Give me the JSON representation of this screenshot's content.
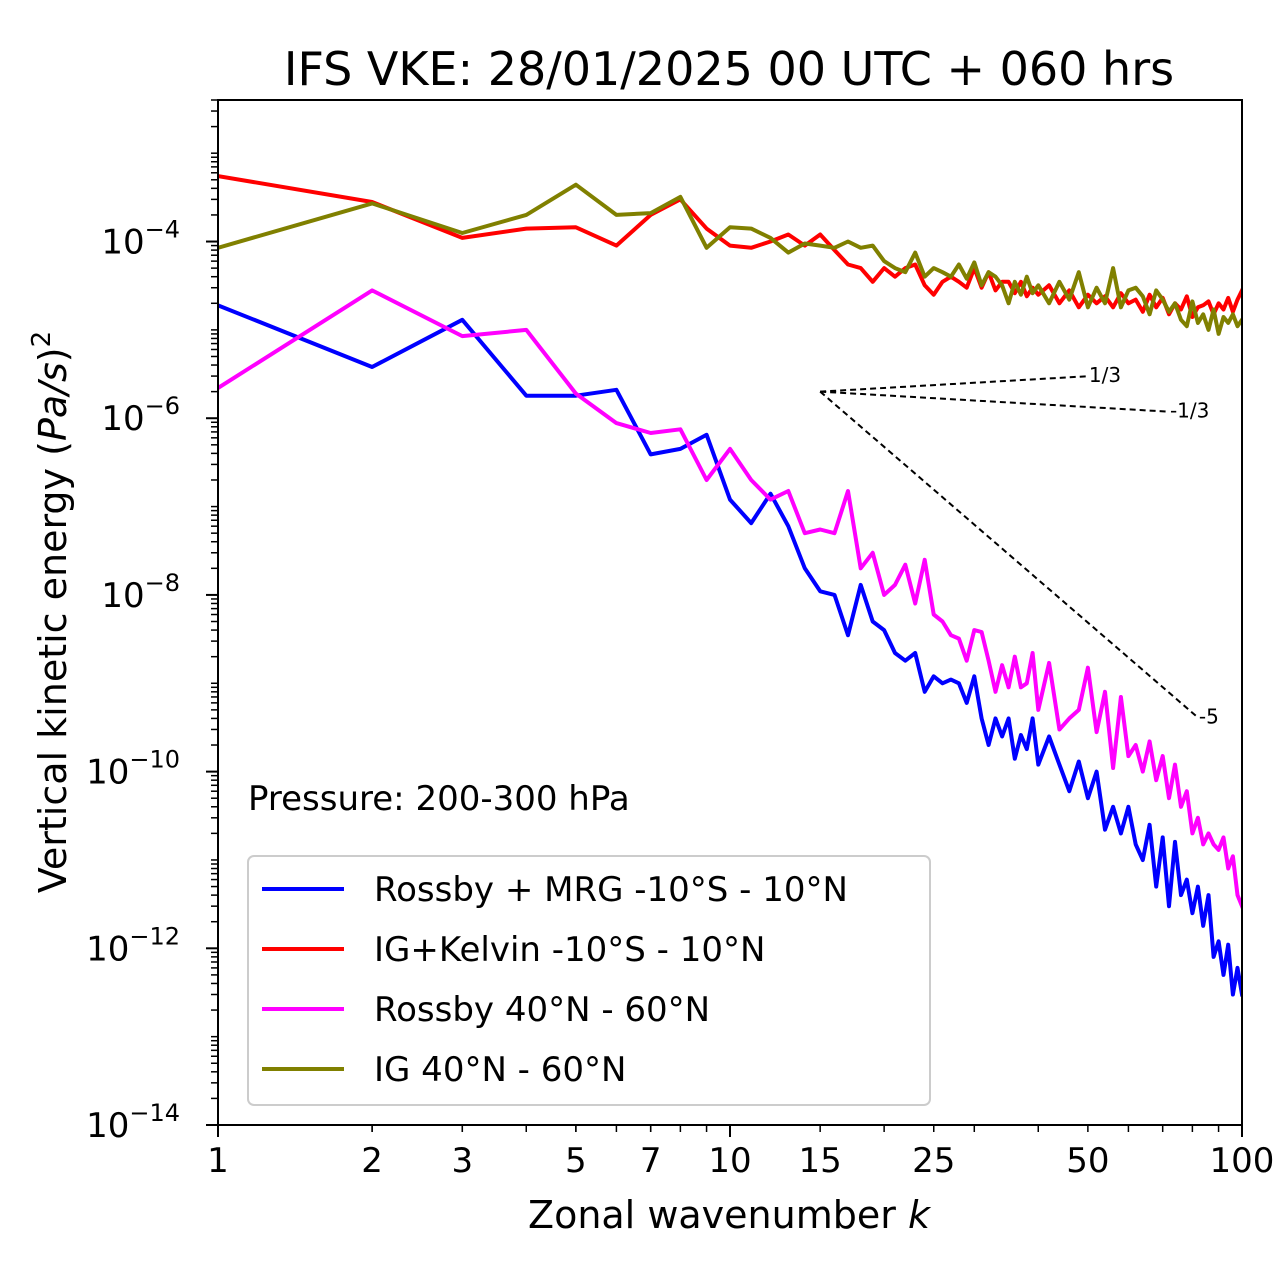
{
  "chart_data": {
    "type": "line",
    "title": "IFS VKE: 28/01/2025 00 UTC + 060 hrs",
    "xlabel": "Zonal wavenumber k",
    "ylabel": "Vertical kinetic energy (Pa/s)^2",
    "x_scale": "log",
    "y_scale": "log",
    "xlim": [
      1,
      100
    ],
    "ylim": [
      1e-14,
      0.004
    ],
    "x_ticks": [
      1,
      2,
      3,
      5,
      7,
      10,
      15,
      25,
      50,
      100
    ],
    "x_tick_labels": [
      "1",
      "2",
      "3",
      "5",
      "7",
      "10",
      "15",
      "25",
      "50",
      "100"
    ],
    "y_ticks": [
      1e-14,
      1e-12,
      1e-10,
      1e-08,
      1e-06,
      0.0001
    ],
    "y_tick_base": "10",
    "y_tick_exponents": [
      "−14",
      "−12",
      "−10",
      "−8",
      "−6",
      "−4"
    ],
    "grid": false,
    "legend_position": "lower-left",
    "annotation": "Pressure: 200-300 hPa",
    "reference_slopes": [
      {
        "label": "1/3",
        "slope": 0.3333,
        "x_start": 15,
        "y_start": 2e-06,
        "x_end": 50
      },
      {
        "label": "-1/3",
        "slope": -0.3333,
        "x_start": 15,
        "y_start": 2e-06,
        "x_end": 72
      },
      {
        "label": "-5",
        "slope": -5,
        "x_start": 15,
        "y_start": 2e-06,
        "x_end": 82
      }
    ],
    "series": [
      {
        "name": "Rossby + MRG -10°S - 10°N",
        "color": "#0000ff",
        "x": [
          1,
          2,
          3,
          4,
          5,
          6,
          7,
          8,
          9,
          10,
          11,
          12,
          13,
          14,
          15,
          16,
          17,
          18,
          19,
          20,
          21,
          22,
          23,
          24,
          25,
          26,
          27,
          28,
          29,
          30,
          31,
          32,
          33,
          34,
          35,
          36,
          37,
          38,
          39,
          40,
          42,
          44,
          46,
          48,
          50,
          52,
          54,
          56,
          58,
          60,
          62,
          64,
          66,
          68,
          70,
          72,
          74,
          76,
          78,
          80,
          82,
          84,
          86,
          88,
          90,
          92,
          94,
          96,
          98,
          100
        ],
        "y": [
          1.9e-05,
          3.8e-06,
          1.3e-05,
          1.8e-06,
          1.8e-06,
          2.1e-06,
          3.9e-07,
          4.5e-07,
          6.5e-07,
          1.2e-07,
          6.5e-08,
          1.4e-07,
          6e-08,
          2e-08,
          1.1e-08,
          1e-08,
          3.5e-09,
          1.3e-08,
          5e-09,
          4e-09,
          2.2e-09,
          1.8e-09,
          2.2e-09,
          8e-10,
          1.2e-09,
          1e-09,
          1.1e-09,
          1e-09,
          6e-10,
          1.2e-09,
          4e-10,
          2e-10,
          4e-10,
          2.5e-10,
          4e-10,
          1.4e-10,
          2.6e-10,
          1.8e-10,
          4e-10,
          1.2e-10,
          2.5e-10,
          1.2e-10,
          6e-11,
          1.3e-10,
          5e-11,
          1e-10,
          2.2e-11,
          4e-11,
          2e-11,
          4e-11,
          1.5e-11,
          1e-11,
          2.5e-11,
          5e-12,
          1.8e-11,
          3e-12,
          1.6e-11,
          4e-12,
          6e-12,
          2.5e-12,
          5e-12,
          1.8e-12,
          4e-12,
          8e-13,
          1.2e-12,
          5e-13,
          1.1e-12,
          3e-13,
          6e-13,
          3e-13
        ]
      },
      {
        "name": "IG+Kelvin -10°S - 10°N",
        "color": "#ff0000",
        "x": [
          1,
          2,
          3,
          4,
          5,
          6,
          7,
          8,
          9,
          10,
          11,
          12,
          13,
          14,
          15,
          16,
          17,
          18,
          19,
          20,
          21,
          22,
          23,
          24,
          25,
          26,
          27,
          28,
          29,
          30,
          31,
          32,
          33,
          34,
          35,
          36,
          37,
          38,
          39,
          40,
          42,
          44,
          46,
          48,
          50,
          52,
          54,
          56,
          58,
          60,
          62,
          64,
          66,
          68,
          70,
          72,
          74,
          76,
          78,
          80,
          82,
          84,
          86,
          88,
          90,
          92,
          94,
          96,
          98,
          100
        ],
        "y": [
          0.00055,
          0.00028,
          0.00011,
          0.00014,
          0.000145,
          9e-05,
          0.0002,
          0.0003,
          0.00014,
          9e-05,
          8.5e-05,
          0.0001,
          0.00012,
          9e-05,
          0.00012,
          8e-05,
          5.5e-05,
          5e-05,
          3.5e-05,
          5e-05,
          4e-05,
          5e-05,
          5.5e-05,
          3.2e-05,
          2.5e-05,
          3.5e-05,
          4e-05,
          3.5e-05,
          3e-05,
          5e-05,
          3e-05,
          4.5e-05,
          2.8e-05,
          3.5e-05,
          3.5e-05,
          2.6e-05,
          3.5e-05,
          2.4e-05,
          3e-05,
          2.5e-05,
          3.2e-05,
          2e-05,
          2.8e-05,
          1.8e-05,
          2.5e-05,
          2e-05,
          2.4e-05,
          1.8e-05,
          2.6e-05,
          2e-05,
          2.2e-05,
          1.6e-05,
          2.5e-05,
          1.8e-05,
          2.3e-05,
          1.5e-05,
          2e-05,
          1.7e-05,
          2.4e-05,
          1.4e-05,
          1.8e-05,
          1.9e-05,
          2.1e-05,
          1.5e-05,
          2e-05,
          1.7e-05,
          2.3e-05,
          1.6e-05,
          2.2e-05,
          2.8e-05
        ]
      },
      {
        "name": "Rossby 40°N - 60°N",
        "color": "#ff00ff",
        "x": [
          1,
          2,
          3,
          4,
          5,
          6,
          7,
          8,
          9,
          10,
          11,
          12,
          13,
          14,
          15,
          16,
          17,
          18,
          19,
          20,
          21,
          22,
          23,
          24,
          25,
          26,
          27,
          28,
          29,
          30,
          31,
          32,
          33,
          34,
          35,
          36,
          37,
          38,
          39,
          40,
          42,
          44,
          46,
          48,
          50,
          52,
          54,
          56,
          58,
          60,
          62,
          64,
          66,
          68,
          70,
          72,
          74,
          76,
          78,
          80,
          82,
          84,
          86,
          88,
          90,
          92,
          94,
          96,
          98,
          100
        ],
        "y": [
          2.2e-06,
          2.8e-05,
          8.5e-06,
          1e-05,
          1.9e-06,
          8.8e-07,
          6.8e-07,
          7.5e-07,
          2e-07,
          4.5e-07,
          2e-07,
          1.2e-07,
          1.5e-07,
          5e-08,
          5.5e-08,
          5e-08,
          1.5e-07,
          2e-08,
          3e-08,
          1e-08,
          1.3e-08,
          2.2e-08,
          8e-09,
          2.5e-08,
          6e-09,
          5e-09,
          3.5e-09,
          3.2e-09,
          1.8e-09,
          4e-09,
          3.8e-09,
          1.8e-09,
          8e-10,
          1.6e-09,
          9e-10,
          2e-09,
          9e-10,
          1e-09,
          2.2e-09,
          5e-10,
          1.7e-09,
          3e-10,
          4e-10,
          5e-10,
          1.5e-09,
          2.8e-10,
          8e-10,
          1.1e-10,
          7e-10,
          1.5e-10,
          2e-10,
          1e-10,
          2.2e-10,
          8e-11,
          1.5e-10,
          5e-11,
          1.2e-10,
          4e-11,
          6e-11,
          2e-11,
          3e-11,
          1.5e-11,
          2e-11,
          1.5e-11,
          1.3e-11,
          1.8e-11,
          8e-12,
          1.1e-11,
          4e-12,
          3e-12
        ]
      },
      {
        "name": "IG 40°N - 60°N",
        "color": "#808000",
        "x": [
          1,
          2,
          3,
          4,
          5,
          6,
          7,
          8,
          9,
          10,
          11,
          12,
          13,
          14,
          15,
          16,
          17,
          18,
          19,
          20,
          21,
          22,
          23,
          24,
          25,
          26,
          27,
          28,
          29,
          30,
          31,
          32,
          33,
          34,
          35,
          36,
          37,
          38,
          39,
          40,
          42,
          44,
          46,
          48,
          50,
          52,
          54,
          56,
          58,
          60,
          62,
          64,
          66,
          68,
          70,
          72,
          74,
          76,
          78,
          80,
          82,
          84,
          86,
          88,
          90,
          92,
          94,
          96,
          98,
          100
        ],
        "y": [
          8.5e-05,
          0.00027,
          0.000125,
          0.0002,
          0.00044,
          0.0002,
          0.00021,
          0.00032,
          8.5e-05,
          0.000145,
          0.00014,
          0.00011,
          7.5e-05,
          9.5e-05,
          9e-05,
          8.5e-05,
          0.0001,
          8.5e-05,
          9e-05,
          6e-05,
          5e-05,
          4.5e-05,
          7.5e-05,
          4e-05,
          5e-05,
          4.5e-05,
          4e-05,
          5.5e-05,
          3.8e-05,
          5.8e-05,
          3.2e-05,
          4.5e-05,
          4e-05,
          3.2e-05,
          2e-05,
          3.5e-05,
          2.5e-05,
          4e-05,
          2.6e-05,
          3.2e-05,
          2e-05,
          3.5e-05,
          2.2e-05,
          4.5e-05,
          1.8e-05,
          3e-05,
          2e-05,
          5e-05,
          1.8e-05,
          2.8e-05,
          3e-05,
          2.4e-05,
          1.5e-05,
          2.8e-05,
          2.2e-05,
          1.6e-05,
          2e-05,
          1.3e-05,
          1.1e-05,
          2.1e-05,
          1.2e-05,
          1.5e-05,
          1e-05,
          1.7e-05,
          9e-06,
          1.4e-05,
          1.2e-05,
          1.5e-05,
          1.1e-05,
          1.3e-05
        ]
      }
    ]
  }
}
